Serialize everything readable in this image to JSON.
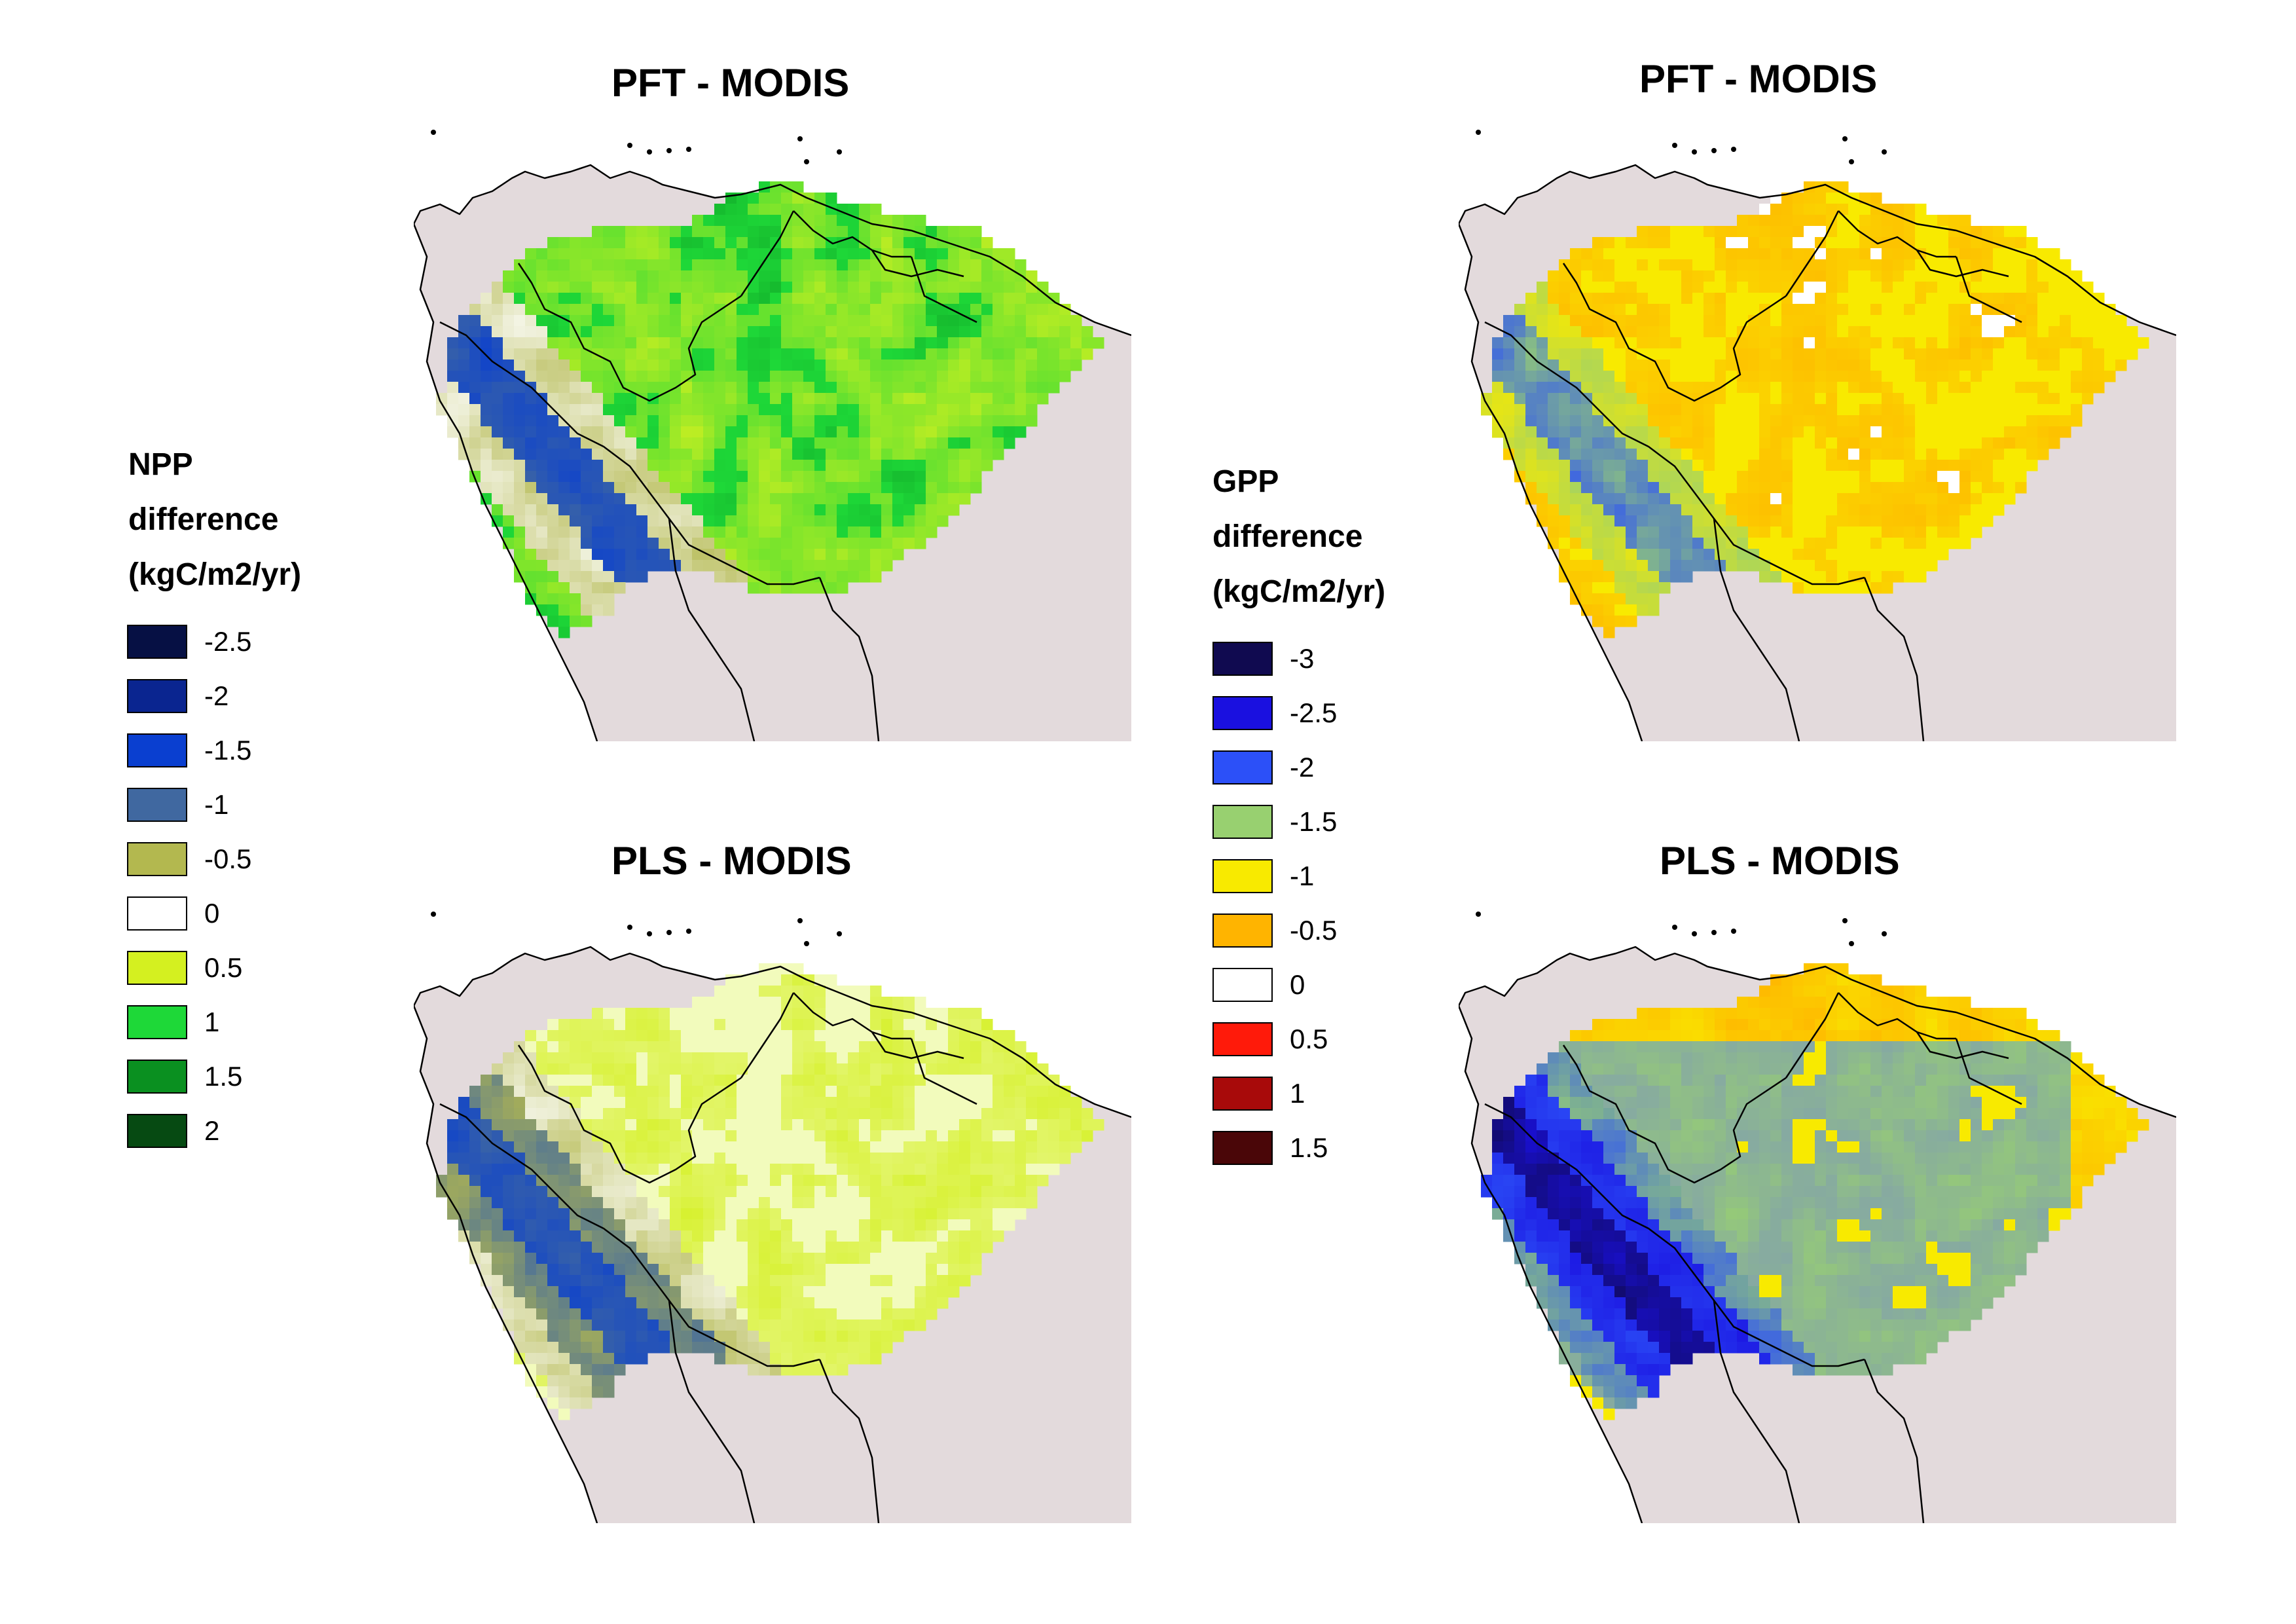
{
  "panels": [
    {
      "id": "npp-pft",
      "title": "PFT - MODIS",
      "scheme": "npp-pft"
    },
    {
      "id": "npp-pls",
      "title": "PLS - MODIS",
      "scheme": "npp-pls"
    },
    {
      "id": "gpp-pft",
      "title": "PFT - MODIS",
      "scheme": "gpp-pft"
    },
    {
      "id": "gpp-pls",
      "title": "PLS - MODIS",
      "scheme": "gpp-pls"
    }
  ],
  "legends": {
    "npp": {
      "title": [
        "NPP",
        "difference",
        "(kgC/m2/yr)"
      ],
      "items": [
        {
          "label": "-2.5",
          "color": "#061044"
        },
        {
          "label": "-2",
          "color": "#0a2590"
        },
        {
          "label": "-1.5",
          "color": "#0a3fd0"
        },
        {
          "label": "-1",
          "color": "#4068a0"
        },
        {
          "label": "-0.5",
          "color": "#b3b84f"
        },
        {
          "label": "0",
          "color": "#ffffff"
        },
        {
          "label": "0.5",
          "color": "#d4f020"
        },
        {
          "label": "1",
          "color": "#1ed838"
        },
        {
          "label": "1.5",
          "color": "#0a9020"
        },
        {
          "label": "2",
          "color": "#064a12"
        }
      ]
    },
    "gpp": {
      "title": [
        "GPP",
        "difference",
        "(kgC/m2/yr)"
      ],
      "items": [
        {
          "label": "-3",
          "color": "#100a50"
        },
        {
          "label": "-2.5",
          "color": "#1a10e0"
        },
        {
          "label": "-2",
          "color": "#2c50f8"
        },
        {
          "label": "-1.5",
          "color": "#98d070"
        },
        {
          "label": "-1",
          "color": "#f8ea00"
        },
        {
          "label": "-0.5",
          "color": "#ffb400"
        },
        {
          "label": "0",
          "color": "#ffffff"
        },
        {
          "label": "0.5",
          "color": "#ff1a0a"
        },
        {
          "label": "1",
          "color": "#a80a0a"
        },
        {
          "label": "1.5",
          "color": "#4a0608"
        }
      ]
    }
  },
  "map_colors": {
    "land": "#e3dadc",
    "border": "#000000",
    "ocean": "#ffffff"
  }
}
